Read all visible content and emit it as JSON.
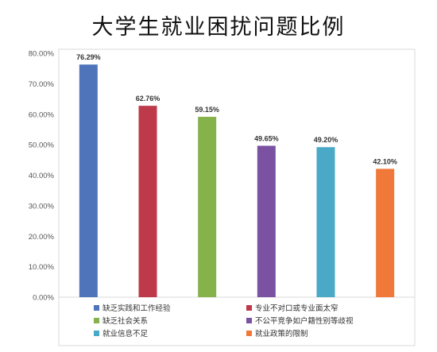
{
  "chart_data": {
    "type": "bar",
    "title": "大学生就业困扰问题比例",
    "xlabel": "",
    "ylabel": "",
    "ylim": [
      0,
      80
    ],
    "y_ticks": [
      "0.00%",
      "10.00%",
      "20.00%",
      "30.00%",
      "40.00%",
      "50.00%",
      "60.00%",
      "70.00%",
      "80.00%"
    ],
    "grid": false,
    "legend_position": "bottom",
    "categories": [
      "缺乏实践和工作经验",
      "专业不对口或专业面太窄",
      "缺乏社会关系",
      "不公平竞争如户籍性别等歧视",
      "就业信息不足",
      "就业政策的限制"
    ],
    "values": [
      76.29,
      62.76,
      59.15,
      49.65,
      49.2,
      42.1
    ],
    "value_labels": [
      "76.29%",
      "62.76%",
      "59.15%",
      "49.65%",
      "49.20%",
      "42.10%"
    ],
    "colors": [
      "#4F74B9",
      "#BE3A4A",
      "#86B24B",
      "#7A52A1",
      "#4AA9C7",
      "#F0793A"
    ]
  }
}
